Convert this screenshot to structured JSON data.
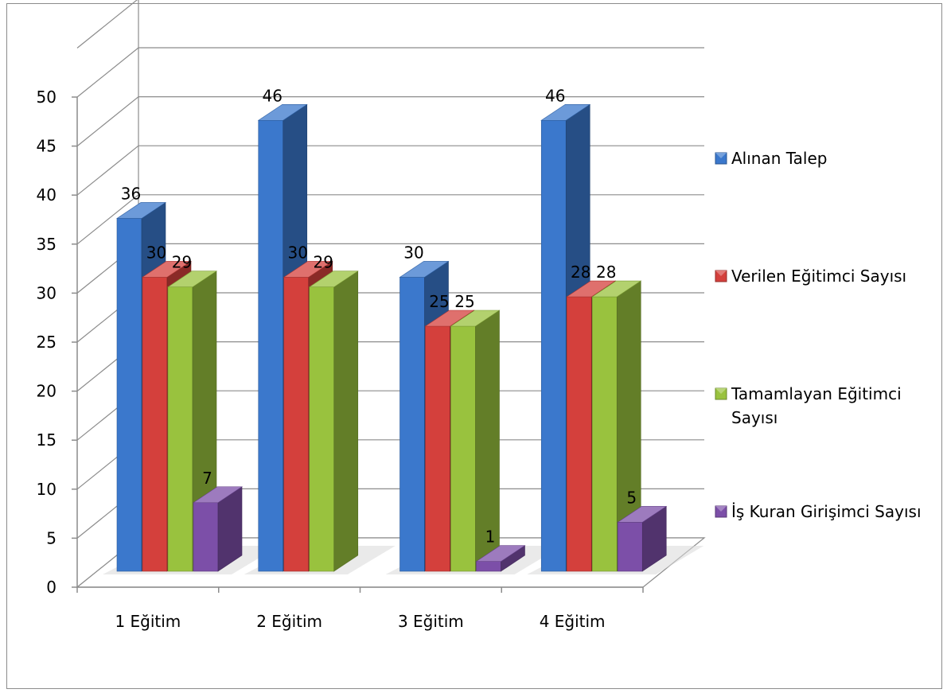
{
  "chart_data": {
    "type": "bar",
    "categories": [
      "1 Eğitim",
      "2 Eğitim",
      "3 Eğitim",
      "4 Eğitim"
    ],
    "series": [
      {
        "name": "Alınan Talep",
        "values": [
          36,
          46,
          30,
          46
        ],
        "color": "#3b78cc"
      },
      {
        "name": "Verilen Eğitimci Sayısı",
        "values": [
          30,
          30,
          25,
          28
        ],
        "color": "#d4403c"
      },
      {
        "name": "Tamamlayan Eğitimci Sayısı",
        "values": [
          29,
          29,
          25,
          28
        ],
        "color": "#99c23e"
      },
      {
        "name": "İş Kuran Girişimci Sayısı",
        "values": [
          7,
          null,
          1,
          5
        ],
        "color": "#7c4fa8"
      }
    ],
    "data_labels": [
      [
        "36",
        "46",
        "30",
        "46"
      ],
      [
        "30",
        "30",
        "25",
        "28"
      ],
      [
        "29",
        "29",
        "25",
        "28"
      ],
      [
        "7",
        "",
        "1",
        "5"
      ]
    ],
    "y_ticks": [
      "0",
      "5",
      "10",
      "15",
      "20",
      "25",
      "30",
      "35",
      "40",
      "45",
      "50"
    ],
    "ylim": [
      0,
      50
    ],
    "grid": true,
    "legend_position": "right",
    "title": "",
    "xlabel": "",
    "ylabel": ""
  }
}
